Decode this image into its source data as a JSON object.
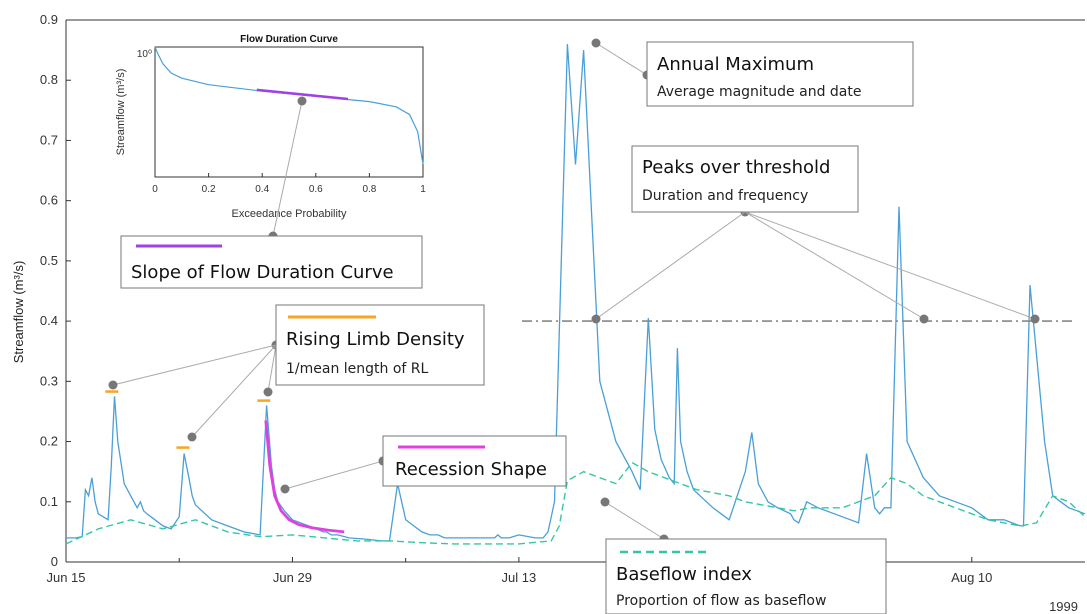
{
  "chart_data": [
    {
      "type": "line",
      "xlabel": "",
      "ylabel": "Streamflow (m³/s)",
      "year_label": "1999",
      "ylim": [
        0,
        0.9
      ],
      "xlim_days": [
        0,
        63
      ],
      "x_tick_labels": [
        "Jun 15",
        "Jun 29",
        "Jul 13",
        "Aug 10"
      ],
      "y_tick_labels": [
        "0",
        "0.1",
        "0.2",
        "0.3",
        "0.4",
        "0.5",
        "0.6",
        "0.7",
        "0.8",
        "0.9"
      ],
      "grid": false,
      "series": [
        {
          "name": "",
          "color": "#4a9fd8",
          "style": "solid",
          "x": [
            0,
            0.6,
            1,
            1.2,
            1.4,
            1.6,
            1.8,
            2,
            2.3,
            2.6,
            2.8,
            3,
            3.2,
            3.6,
            4,
            4.4,
            4.6,
            4.8,
            5,
            5.5,
            6,
            6.5,
            7,
            7.3,
            7.6,
            7.8,
            8,
            8.2,
            8.6,
            9,
            10,
            11,
            12,
            12.4,
            12.7,
            12.9,
            13.1,
            13.5,
            14,
            15,
            15.5,
            15.9,
            16.1,
            16.4,
            16.8,
            17.5,
            18.5,
            19.5,
            20,
            20.5,
            21,
            22,
            22.5,
            22.8,
            23,
            23.4,
            24,
            25,
            26,
            26.5,
            26.7,
            26.9,
            27.4,
            28,
            29,
            29.5,
            29.8,
            30.2,
            31,
            31.5,
            32,
            33,
            34,
            35,
            35.5,
            36,
            36.4,
            36.8,
            37.3,
            37.6,
            37.8,
            38,
            38.4,
            38.8,
            39.2,
            39.6,
            40,
            40.5,
            41,
            42,
            42.4,
            42.8,
            43.4,
            44,
            44.8,
            45,
            45.3,
            45.8,
            46.5,
            47.5,
            48,
            48.5,
            49,
            49.5,
            50,
            50.3,
            50.6,
            51,
            51.5,
            52,
            53,
            54,
            55,
            56,
            56.5,
            57,
            58,
            58.5,
            59,
            59.2,
            59.6,
            60.5,
            61,
            61.5,
            62,
            62.5,
            63
          ],
          "y": [
            0.04,
            0.04,
            0.042,
            0.12,
            0.11,
            0.14,
            0.1,
            0.08,
            0.075,
            0.07,
            0.16,
            0.275,
            0.2,
            0.13,
            0.11,
            0.09,
            0.1,
            0.085,
            0.08,
            0.07,
            0.06,
            0.055,
            0.075,
            0.18,
            0.14,
            0.11,
            0.095,
            0.09,
            0.08,
            0.07,
            0.06,
            0.05,
            0.045,
            0.26,
            0.16,
            0.12,
            0.1,
            0.085,
            0.07,
            0.06,
            0.055,
            0.05,
            0.05,
            0.045,
            0.045,
            0.04,
            0.038,
            0.035,
            0.035,
            0.13,
            0.07,
            0.05,
            0.045,
            0.045,
            0.045,
            0.04,
            0.04,
            0.04,
            0.04,
            0.04,
            0.045,
            0.04,
            0.04,
            0.045,
            0.04,
            0.04,
            0.05,
            0.1,
            0.86,
            0.66,
            0.85,
            0.3,
            0.2,
            0.15,
            0.12,
            0.405,
            0.22,
            0.17,
            0.14,
            0.13,
            0.355,
            0.2,
            0.15,
            0.12,
            0.11,
            0.1,
            0.09,
            0.08,
            0.07,
            0.15,
            0.215,
            0.13,
            0.1,
            0.09,
            0.08,
            0.07,
            0.065,
            0.1,
            0.09,
            0.08,
            0.075,
            0.07,
            0.065,
            0.18,
            0.09,
            0.08,
            0.09,
            0.09,
            0.59,
            0.2,
            0.14,
            0.11,
            0.1,
            0.09,
            0.08,
            0.07,
            0.07,
            0.065,
            0.06,
            0.06,
            0.46,
            0.2,
            0.11,
            0.1,
            0.09,
            0.085,
            0.08
          ]
        },
        {
          "name": "",
          "color": "#35c7a5",
          "style": "dashed",
          "x": [
            0,
            2,
            4,
            6,
            8,
            10,
            12,
            14,
            16,
            18,
            20,
            22,
            24,
            26,
            28,
            30,
            30.5,
            31,
            32,
            33,
            34,
            35,
            36,
            37,
            38,
            39,
            40,
            41,
            42,
            43,
            44,
            45,
            46,
            48,
            50,
            51,
            52,
            53,
            54,
            55,
            56,
            57,
            58,
            59,
            60,
            61,
            62,
            63
          ],
          "y": [
            0.03,
            0.055,
            0.07,
            0.055,
            0.07,
            0.05,
            0.042,
            0.045,
            0.04,
            0.035,
            0.035,
            0.032,
            0.03,
            0.03,
            0.03,
            0.035,
            0.06,
            0.135,
            0.15,
            0.14,
            0.13,
            0.165,
            0.15,
            0.14,
            0.13,
            0.12,
            0.115,
            0.11,
            0.1,
            0.095,
            0.09,
            0.085,
            0.09,
            0.09,
            0.11,
            0.14,
            0.13,
            0.11,
            0.1,
            0.09,
            0.08,
            0.07,
            0.065,
            0.06,
            0.065,
            0.11,
            0.1,
            0.075
          ]
        }
      ],
      "markers": {
        "threshold": 0.4,
        "rising_limb_bars": [
          {
            "x": 2.8,
            "y": 0.283
          },
          {
            "x": 7.2,
            "y": 0.19
          },
          {
            "x": 12.2,
            "y": 0.268
          }
        ],
        "recession_curve": {
          "color": "#e040e0",
          "x": [
            12.35,
            12.6,
            12.9,
            13.3,
            13.8,
            14.4,
            15.2,
            16.2,
            17.2
          ],
          "y": [
            0.235,
            0.16,
            0.11,
            0.085,
            0.07,
            0.062,
            0.057,
            0.053,
            0.05
          ]
        }
      },
      "annotations": [
        {
          "id": "annual_max",
          "title": "Annual Maximum",
          "subtitle": "Average magnitude and date"
        },
        {
          "id": "pot",
          "title": "Peaks over threshold",
          "subtitle": "Duration and frequency"
        },
        {
          "id": "fdc_slope",
          "title": "Slope of Flow Duration Curve",
          "subtitle": ""
        },
        {
          "id": "rld",
          "title": "Rising Limb Density",
          "subtitle": "1/mean length of RL"
        },
        {
          "id": "recession",
          "title": "Recession Shape",
          "subtitle": ""
        },
        {
          "id": "baseflow",
          "title": "Baseflow index",
          "subtitle": "Proportion of flow as baseflow"
        }
      ]
    },
    {
      "type": "line",
      "title": "Flow Duration Curve",
      "xlabel": "Exceedance Probability",
      "ylabel": "Streamflow (m³/s)",
      "y_top_label": "10⁰",
      "scale_y": "log",
      "xlim": [
        0,
        1
      ],
      "x_tick_labels": [
        "0",
        "0.2",
        "0.4",
        "0.6",
        "0.8",
        "1"
      ],
      "series": [
        {
          "name": "",
          "color": "#4a9fd8",
          "x": [
            0,
            0.01,
            0.03,
            0.06,
            0.1,
            0.2,
            0.4,
            0.6,
            0.8,
            0.9,
            0.95,
            0.98,
            1.0
          ],
          "y_rel": [
            0.0,
            0.05,
            0.13,
            0.2,
            0.24,
            0.29,
            0.34,
            0.38,
            0.42,
            0.46,
            0.52,
            0.65,
            0.9
          ]
        }
      ],
      "slope_segment": {
        "color": "#a040e8",
        "x": [
          0.38,
          0.72
        ],
        "y_rel": [
          0.33,
          0.4
        ]
      }
    }
  ]
}
